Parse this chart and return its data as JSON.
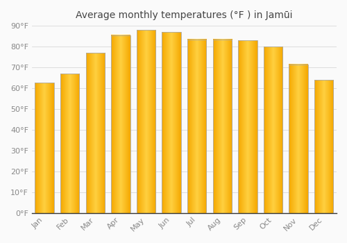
{
  "title": "Average monthly temperatures (°F ) in Jamūi",
  "months": [
    "Jan",
    "Feb",
    "Mar",
    "Apr",
    "May",
    "Jun",
    "Jul",
    "Aug",
    "Sep",
    "Oct",
    "Nov",
    "Dec"
  ],
  "values": [
    62.5,
    67,
    77,
    85.5,
    88,
    87,
    83.5,
    83.5,
    83,
    80,
    71.5,
    64
  ],
  "bar_color_left": "#F5A800",
  "bar_color_center": "#FFD040",
  "bar_color_right": "#F5A800",
  "bar_edge_color": "#AAAAAA",
  "background_color": "#FAFAFA",
  "grid_color": "#DDDDDD",
  "ylim": [
    0,
    90
  ],
  "yticks": [
    0,
    10,
    20,
    30,
    40,
    50,
    60,
    70,
    80,
    90
  ],
  "title_fontsize": 10,
  "tick_fontsize": 8,
  "tick_color": "#888888",
  "spine_color": "#333333",
  "title_color": "#444444"
}
